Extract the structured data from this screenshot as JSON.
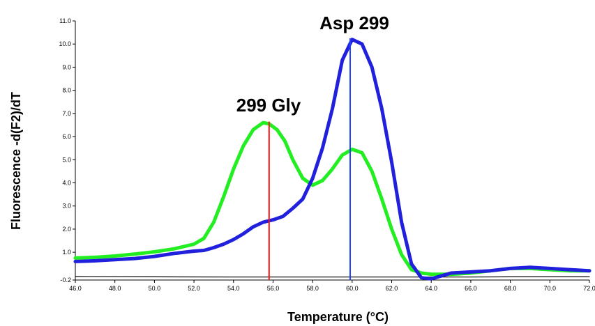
{
  "chart_data": {
    "type": "line",
    "xlabel": "Temperature (°C)",
    "ylabel": "Fluorescence -d(F2)/dT",
    "xlim": [
      46.0,
      72.0
    ],
    "ylim": [
      -0.2,
      11.0
    ],
    "x_ticks": [
      "46.0",
      "48.0",
      "50.0",
      "52.0",
      "54.0",
      "56.0",
      "58.0",
      "60.0",
      "62.0",
      "64.0",
      "66.0",
      "68.0",
      "70.0",
      "72.0"
    ],
    "y_ticks": [
      "-0.2",
      "1.0",
      "2.0",
      "3.0",
      "4.0",
      "5.0",
      "6.0",
      "7.0",
      "8.0",
      "9.0",
      "10.0",
      "11.0"
    ],
    "grid": false,
    "series": [
      {
        "color": "#22ee22",
        "x": [
          46,
          47,
          48,
          49,
          50,
          51,
          52,
          52.5,
          53,
          53.5,
          54,
          54.5,
          55,
          55.5,
          55.8,
          56.2,
          56.6,
          57,
          57.5,
          58,
          58.5,
          59,
          59.5,
          60,
          60.5,
          61,
          61.5,
          62,
          62.5,
          63,
          63.5,
          64,
          65,
          66,
          67,
          68,
          69,
          70,
          71,
          72
        ],
        "y": [
          0.75,
          0.78,
          0.84,
          0.92,
          1.02,
          1.15,
          1.35,
          1.6,
          2.3,
          3.4,
          4.6,
          5.6,
          6.3,
          6.6,
          6.55,
          6.3,
          5.8,
          5.0,
          4.2,
          3.9,
          4.1,
          4.6,
          5.2,
          5.45,
          5.3,
          4.5,
          3.3,
          2.0,
          0.9,
          0.25,
          0.1,
          0.05,
          0.05,
          0.1,
          0.2,
          0.3,
          0.3,
          0.25,
          0.2,
          0.2
        ]
      },
      {
        "color": "#2020dd",
        "x": [
          46,
          47,
          48,
          49,
          50,
          51,
          52,
          52.5,
          53,
          53.5,
          54,
          54.5,
          55,
          55.5,
          56,
          56.5,
          57,
          57.5,
          58,
          58.5,
          59,
          59.5,
          60,
          60.5,
          61,
          61.5,
          62,
          62.5,
          63,
          63.5,
          64,
          65,
          66,
          67,
          68,
          69,
          70,
          71,
          72
        ],
        "y": [
          0.6,
          0.63,
          0.68,
          0.73,
          0.82,
          0.95,
          1.05,
          1.08,
          1.2,
          1.35,
          1.55,
          1.8,
          2.1,
          2.3,
          2.4,
          2.55,
          2.9,
          3.3,
          4.2,
          5.5,
          7.2,
          9.3,
          10.2,
          10.0,
          9.0,
          7.2,
          4.9,
          2.3,
          0.5,
          -0.1,
          -0.15,
          0.1,
          0.15,
          0.2,
          0.3,
          0.35,
          0.3,
          0.25,
          0.2
        ]
      },
      {
        "color": "#000000",
        "x": [
          46,
          50,
          54,
          58,
          60,
          62,
          64,
          66,
          68,
          70,
          72
        ],
        "y": [
          -0.05,
          -0.06,
          -0.07,
          -0.07,
          -0.07,
          -0.07,
          -0.07,
          -0.07,
          -0.06,
          -0.06,
          -0.06
        ]
      }
    ],
    "markers": [
      {
        "x": 55.8,
        "color": "#ff1111"
      },
      {
        "x": 59.9,
        "color": "#2244ff"
      }
    ],
    "annotations": [
      {
        "text": "299 Gly"
      },
      {
        "text": "Asp 299"
      }
    ]
  }
}
